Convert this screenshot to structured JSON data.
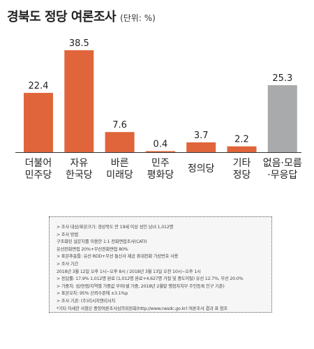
{
  "header": {
    "title": "경북도 정당 여론조사",
    "unit": "(단위: %)"
  },
  "chart_data": {
    "type": "bar",
    "title": "경북도 정당 여론조사",
    "unit_label": "(단위: %)",
    "categories": [
      [
        "더불어",
        "민주당"
      ],
      [
        "자유",
        "한국당"
      ],
      [
        "바른",
        "미래당"
      ],
      [
        "민주",
        "평화당"
      ],
      [
        "정의당"
      ],
      [
        "기타",
        "정당"
      ],
      [
        "없음·모름",
        "·무응답"
      ]
    ],
    "values": [
      22.4,
      38.5,
      7.6,
      0.4,
      3.7,
      2.2,
      25.3
    ],
    "value_labels": [
      "22.4",
      "38.5",
      "7.6",
      "0.4",
      "3.7",
      "2.2",
      "25.3"
    ],
    "colors": [
      "#e0653a",
      "#e0653a",
      "#e0653a",
      "#e0653a",
      "#e0653a",
      "#e0653a",
      "#a9aaac"
    ],
    "ylim": [
      0,
      38.5
    ],
    "grid": false,
    "legend": "none"
  },
  "notes": [
    "> 조사 대상/표본크기: 경상북도 만 19세 이상 성인 남녀 1,012명",
    "> 조사 방법",
    "구조화된 설문지를 이용한 1:1 전화면접조사(CATI)",
    "유선전화면접 20%+무선전화면접 80%",
    "> 표본추출틀: 유선 RDD+무선 통신사 제공 휴대전화 가상번호 사용",
    "> 조사 기간",
    "2018년 3월 12일 오후 1시~오후 8시 / 2018년 3월 13일 오전 10시~오후 1시",
    "> 응답률: 17.9% 1,012명 완료 (1,012명 완료+4,627명 거절 및 중도이탈) 유선 12.7%, 무선 20.0%",
    "> 가중치: 성/연령/지역별 가중값 부여(셀 가중, 2018년 2월말 행정자치부 주민등록 인구 기준)",
    "> 표본오차: 95% 신뢰수준에 ±3.1%p",
    "> 조사 기관: (주)리서치앤리서치",
    "*기타 자세한 사항은 중앙여론조사심의위원회(http://www.nesdc.go.kr) 여론조사 결과 표 참조"
  ]
}
